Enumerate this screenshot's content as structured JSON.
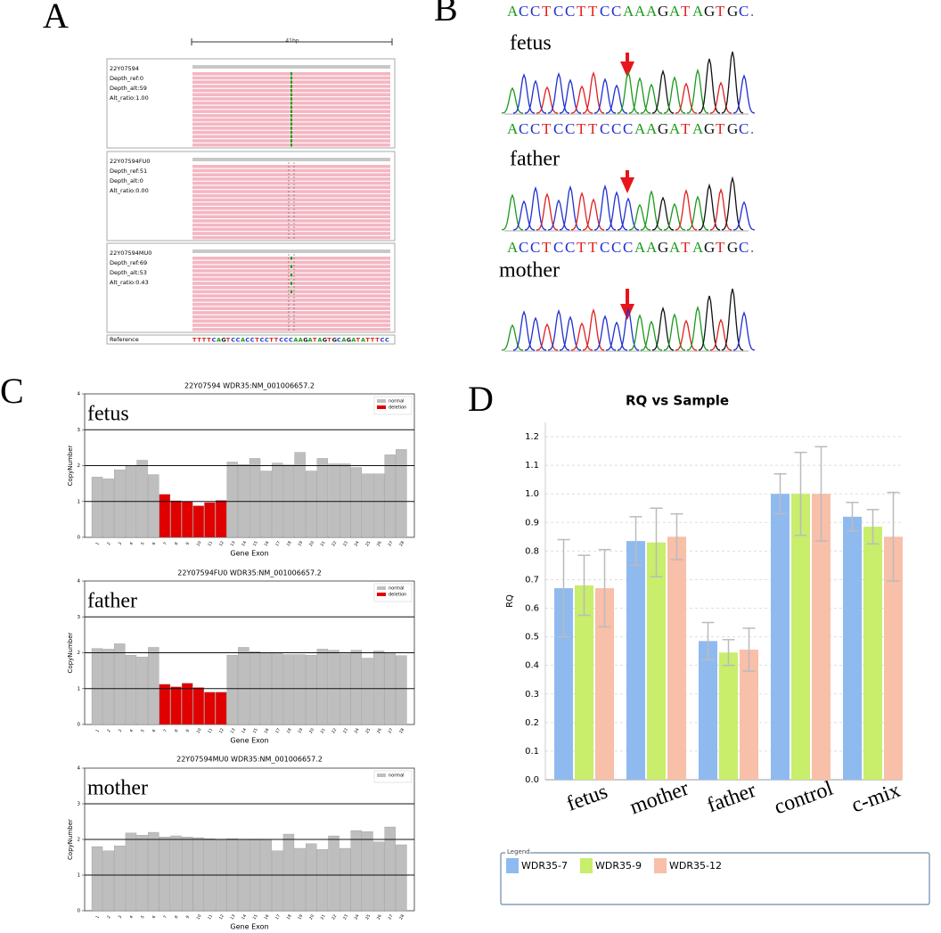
{
  "panel_labels": [
    "A",
    "B",
    "C",
    "D"
  ],
  "igv": {
    "scale": "41bp",
    "tracks": [
      {
        "name": "22Y07594",
        "lines": [
          "Depth_ref:0",
          "Depth_alt:59",
          "Alt_ratio:1.00"
        ]
      },
      {
        "name": "22Y07594FU0",
        "lines": [
          "Depth_ref:51",
          "Depth_alt:0",
          "Alt_ratio:0.00"
        ]
      },
      {
        "name": "22Y07594MU0",
        "lines": [
          "Depth_ref:69",
          "Depth_alt:53",
          "Alt_ratio:0.43"
        ]
      }
    ],
    "reference_label": "Reference",
    "reference": "TTTTCAGTCCACCTCCTTCCCAAGATAGTGCAGATATTTCC"
  },
  "chromatogram": {
    "traces": [
      {
        "label": "fetus",
        "sequence": "ACCTCCTTCCAAAGATAGTGC."
      },
      {
        "label": "father",
        "sequence": "ACCTCCTTCCCAAGATAGTGC."
      },
      {
        "label": "mother",
        "sequence": "ACCTCCTTCCCAAGATAGTGC."
      }
    ]
  },
  "chart_data": [
    {
      "type": "bar",
      "title": "22Y07594 WDR35:NM_001006657.2",
      "annotation": "fetus",
      "x_label": "Gene Exon",
      "y_label": "CopyNumber",
      "categories": [
        "1",
        "2",
        "3",
        "4",
        "5",
        "6",
        "7",
        "8",
        "9",
        "10",
        "11",
        "12",
        "13",
        "14",
        "15",
        "16",
        "17",
        "18",
        "19",
        "20",
        "21",
        "22",
        "23",
        "24",
        "25",
        "26",
        "27",
        "28"
      ],
      "series": [
        {
          "name": "normal",
          "color": "#bebebe",
          "values": [
            1.68,
            1.63,
            1.88,
            2.0,
            2.15,
            1.75,
            null,
            null,
            null,
            null,
            null,
            null,
            2.1,
            2.03,
            2.2,
            1.85,
            2.07,
            2.02,
            2.37,
            1.85,
            2.2,
            2.05,
            2.05,
            1.95,
            1.77,
            1.77,
            2.3,
            2.45
          ]
        },
        {
          "name": "deletion",
          "color": "#e00000",
          "values": [
            null,
            null,
            null,
            null,
            null,
            null,
            1.2,
            1.02,
            1.0,
            0.88,
            0.97,
            1.03,
            null,
            null,
            null,
            null,
            null,
            null,
            null,
            null,
            null,
            null,
            null,
            null,
            null,
            null,
            null,
            null
          ]
        }
      ],
      "ylim": [
        0,
        4
      ],
      "yticks": [
        0,
        1,
        2,
        3,
        4
      ],
      "hlines": [
        1,
        2,
        3
      ],
      "legend": "upper right"
    },
    {
      "type": "bar",
      "title": "22Y07594FU0 WDR35:NM_001006657.2",
      "annotation": "father",
      "x_label": "Gene Exon",
      "y_label": "CopyNumber",
      "categories": [
        "1",
        "2",
        "3",
        "4",
        "5",
        "6",
        "7",
        "8",
        "9",
        "10",
        "11",
        "12",
        "13",
        "14",
        "15",
        "16",
        "17",
        "18",
        "19",
        "20",
        "21",
        "22",
        "23",
        "24",
        "25",
        "26",
        "27",
        "28"
      ],
      "series": [
        {
          "name": "normal",
          "color": "#bebebe",
          "values": [
            2.12,
            2.1,
            2.25,
            1.93,
            1.88,
            2.15,
            null,
            null,
            null,
            null,
            null,
            null,
            1.93,
            2.15,
            2.03,
            2.0,
            2.0,
            1.95,
            1.95,
            1.93,
            2.1,
            2.07,
            1.97,
            2.07,
            1.85,
            2.05,
            2.0,
            1.92
          ]
        },
        {
          "name": "deletion",
          "color": "#e00000",
          "values": [
            null,
            null,
            null,
            null,
            null,
            null,
            1.12,
            1.05,
            1.15,
            1.03,
            0.9,
            0.9,
            null,
            null,
            null,
            null,
            null,
            null,
            null,
            null,
            null,
            null,
            null,
            null,
            null,
            null,
            null,
            null
          ]
        }
      ],
      "ylim": [
        0,
        4
      ],
      "yticks": [
        0,
        1,
        2,
        3,
        4
      ],
      "hlines": [
        1,
        2,
        3
      ],
      "legend": "upper right"
    },
    {
      "type": "bar",
      "title": "22Y07594MU0 WDR35:NM_001006657.2",
      "annotation": "mother",
      "x_label": "Gene Exon",
      "y_label": "CopyNumber",
      "categories": [
        "1",
        "2",
        "3",
        "4",
        "5",
        "6",
        "7",
        "8",
        "9",
        "10",
        "11",
        "12",
        "13",
        "14",
        "15",
        "16",
        "17",
        "18",
        "19",
        "20",
        "21",
        "22",
        "23",
        "24",
        "25",
        "26",
        "27",
        "28"
      ],
      "series": [
        {
          "name": "normal",
          "color": "#bebebe",
          "values": [
            1.8,
            1.68,
            1.82,
            2.18,
            2.12,
            2.2,
            2.07,
            2.1,
            2.07,
            2.05,
            2.02,
            2.0,
            2.02,
            2.0,
            1.98,
            2.0,
            1.68,
            2.15,
            1.75,
            1.88,
            1.72,
            2.1,
            1.75,
            2.25,
            2.22,
            1.93,
            2.35,
            1.85
          ]
        }
      ],
      "ylim": [
        0,
        4
      ],
      "yticks": [
        0,
        1,
        2,
        3,
        4
      ],
      "hlines": [
        1,
        2,
        3
      ],
      "legend": "upper right"
    },
    {
      "type": "errorbar",
      "title": "RQ vs Sample",
      "y_label": "RQ",
      "legend_title": "Legend",
      "categories": [
        "fetus",
        "mother",
        "father",
        "control",
        "c-mix"
      ],
      "series": [
        {
          "name": "WDR35-7",
          "color": "#8fbaf0",
          "values": [
            0.67,
            0.835,
            0.485,
            1.0,
            0.92
          ],
          "errors": [
            0.17,
            0.085,
            0.065,
            0.07,
            0.05
          ]
        },
        {
          "name": "WDR35-9",
          "color": "#c8ee6c",
          "values": [
            0.68,
            0.83,
            0.445,
            1.0,
            0.885
          ],
          "errors": [
            0.105,
            0.12,
            0.045,
            0.145,
            0.06
          ]
        },
        {
          "name": "WDR35-12",
          "color": "#f8bfa9",
          "values": [
            0.67,
            0.85,
            0.455,
            1.0,
            0.85
          ],
          "errors": [
            0.135,
            0.08,
            0.075,
            0.165,
            0.155
          ]
        }
      ],
      "ylim": [
        0,
        1.25
      ],
      "yticks": [
        {
          "value": 0,
          "label": "0.0"
        },
        0.1,
        0.2,
        0.3,
        0.4,
        0.5,
        0.6,
        0.7,
        0.8,
        0.9,
        {
          "value": 1,
          "label": "1.0"
        },
        1.1,
        1.2
      ],
      "grid": true,
      "legend": "bottom"
    }
  ]
}
